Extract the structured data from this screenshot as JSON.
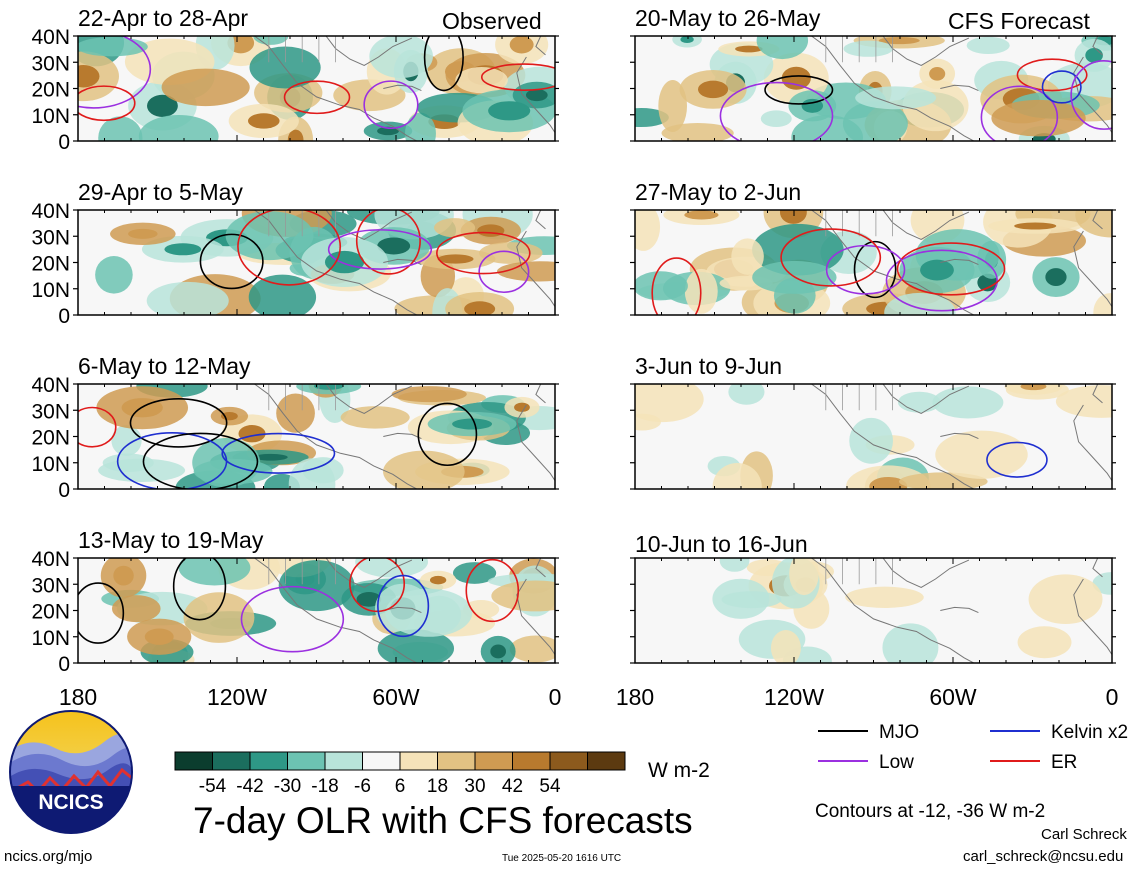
{
  "chart_data": {
    "type": "heatmap",
    "title": "7-day OLR with CFS forecasts",
    "units": "W m-2",
    "observed_label": "Observed",
    "forecast_label": "CFS Forecast",
    "panels_observed": [
      {
        "title": "22-Apr to 28-Apr"
      },
      {
        "title": "29-Apr to 5-May"
      },
      {
        "title": "6-May to 12-May"
      },
      {
        "title": "13-May to 19-May"
      }
    ],
    "panels_forecast": [
      {
        "title": "20-May to 26-May"
      },
      {
        "title": "27-May to 2-Jun"
      },
      {
        "title": "3-Jun to 9-Jun"
      },
      {
        "title": "10-Jun to 16-Jun"
      }
    ],
    "lat_ticks": [
      "40N",
      "30N",
      "20N",
      "10N",
      "0"
    ],
    "lon_ticks": [
      "180",
      "120W",
      "60W",
      "0"
    ],
    "lat_range": [
      0,
      40
    ],
    "lon_range": [
      -180,
      0
    ],
    "colorbar": {
      "colors": [
        "#0b3d2e",
        "#1b6e5e",
        "#2e9886",
        "#6cc3b2",
        "#b8e4da",
        "#f7f7f7",
        "#f5e3b9",
        "#e2c283",
        "#cf9b52",
        "#b87a2e",
        "#8c5a1d",
        "#5c3a10"
      ],
      "labels": [
        "-54",
        "-42",
        "-30",
        "-18",
        "-6",
        "6",
        "18",
        "30",
        "42",
        "54"
      ]
    },
    "contours": "Contours at -12, -36 W m-2",
    "legend": [
      {
        "name": "MJO",
        "color": "#000000"
      },
      {
        "name": "Kelvin x2",
        "color": "#1f2fd0"
      },
      {
        "name": "Low",
        "color": "#9b30e0"
      },
      {
        "name": "ER",
        "color": "#e01b1b"
      }
    ]
  },
  "branding": {
    "logo_text": "NCICS",
    "site": "ncics.org/mjo"
  },
  "footer": {
    "timestamp": "Tue 2025-05-20 1616 UTC",
    "author": "Carl Schreck",
    "email": "carl_schreck@ncsu.edu"
  }
}
